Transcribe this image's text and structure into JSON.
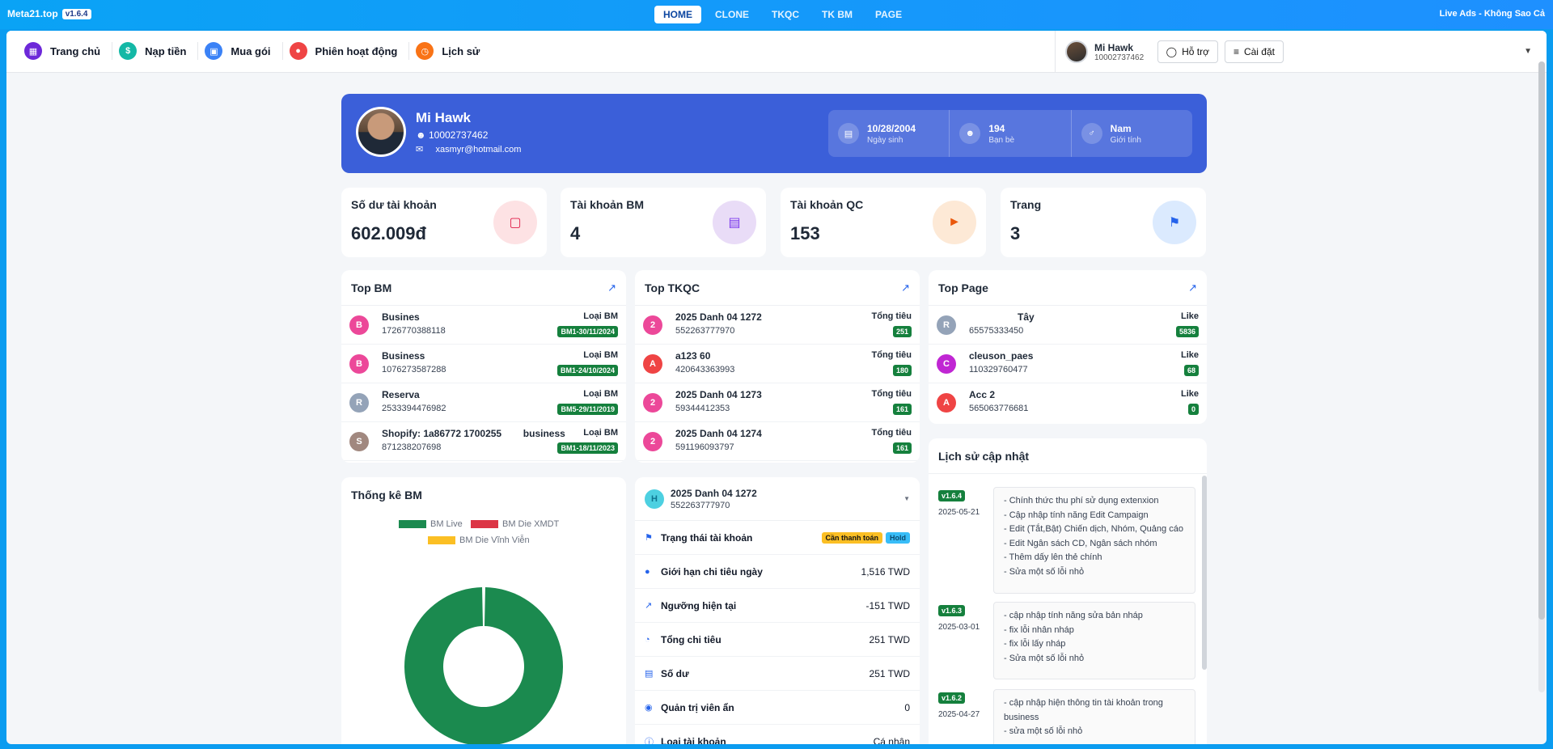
{
  "topbar": {
    "brand": "Meta21.top",
    "version": "v1.6.4",
    "tabs": [
      "HOME",
      "CLONE",
      "TKQC",
      "TK BM",
      "PAGE"
    ],
    "right_text": "Live Ads - Không Sao Cả"
  },
  "menu": {
    "items": [
      {
        "label": "Trang chủ",
        "color": "#6d28d9"
      },
      {
        "label": "Nạp tiền",
        "color": "#14b8a6"
      },
      {
        "label": "Mua gói",
        "color": "#3b82f6"
      },
      {
        "label": "Phiên hoạt động",
        "color": "#ef4444"
      },
      {
        "label": "Lịch sử",
        "color": "#f97316"
      }
    ],
    "support": "Hỗ trợ",
    "settings": "Cài đặt",
    "user_name": "Mi Hawk",
    "user_id": "10002737462"
  },
  "profile": {
    "name": "Mi Hawk",
    "id": "10002737462",
    "email": "xasmyr@hotmail.com",
    "stats": [
      {
        "value": "10/28/2004",
        "label": "Ngày sinh"
      },
      {
        "value": "194",
        "label": "Bạn bè"
      },
      {
        "value": "Nam",
        "label": "Giới tính"
      }
    ]
  },
  "stats": [
    {
      "title": "Số dư tài khoản",
      "value": "602.009đ",
      "bg": "#fde2e4",
      "fg": "#e11d48"
    },
    {
      "title": "Tài khoản BM",
      "value": "4",
      "bg": "#e9dcf7",
      "fg": "#7c3aed"
    },
    {
      "title": "Tài khoản QC",
      "value": "153",
      "bg": "#fde9d6",
      "fg": "#ea580c"
    },
    {
      "title": "Trang",
      "value": "3",
      "bg": "#dbeafe",
      "fg": "#2563eb"
    }
  ],
  "top_bm": {
    "title": "Top BM",
    "rows": [
      {
        "letter": "B",
        "color": "#ec4899",
        "name": "Busines",
        "id": "1726770388118",
        "type": "Loại BM",
        "badge": "BM1-30/11/2024"
      },
      {
        "letter": "B",
        "color": "#ec4899",
        "name": "Business",
        "id": "1076273587288",
        "type": "Loại BM",
        "badge": "BM1-24/10/2024"
      },
      {
        "letter": "R",
        "color": "#94a3b8",
        "name": "Reserva",
        "id": "2533394476982",
        "type": "Loại BM",
        "badge": "BM5-29/11/2019"
      },
      {
        "letter": "S",
        "color": "#a1887f",
        "name": "Shopify: 1a86772 1700255",
        "name2": "business",
        "id": "871238207698",
        "type": "Loại BM",
        "badge": "BM1-18/11/2023"
      }
    ]
  },
  "top_tkqc": {
    "title": "Top TKQC",
    "rows": [
      {
        "letter": "2",
        "color": "#ec4899",
        "name": "2025 Danh 04 1272",
        "id": "552263777970",
        "type": "Tổng tiêu",
        "badge": "251"
      },
      {
        "letter": "A",
        "color": "#ef4444",
        "name": "a123 60",
        "id": "420643363993",
        "type": "Tổng tiêu",
        "badge": "180"
      },
      {
        "letter": "2",
        "color": "#ec4899",
        "name": "2025 Danh 04 1273",
        "id": "59344412353",
        "type": "Tổng tiêu",
        "badge": "161"
      },
      {
        "letter": "2",
        "color": "#ec4899",
        "name": "2025 Danh 04 1274",
        "id": "591196093797",
        "type": "Tổng tiêu",
        "badge": "161"
      }
    ]
  },
  "top_page": {
    "title": "Top Page",
    "rows": [
      {
        "letter": "R",
        "color": "#94a3b8",
        "name": "Tây",
        "id": "65575333450",
        "type": "Like",
        "badge": "5836"
      },
      {
        "letter": "C",
        "color": "#c026d3",
        "name": "cleuson_paes",
        "id": "110329760477",
        "type": "Like",
        "badge": "68"
      },
      {
        "letter": "A",
        "color": "#ef4444",
        "name": "Acc 2",
        "id": "565063776681",
        "type": "Like",
        "badge": "0"
      }
    ]
  },
  "bm_stats": {
    "title": "Thống kê BM",
    "chart_data": {
      "type": "pie",
      "categories": [
        "BM Live",
        "BM Die XMDT",
        "BM Die Vĩnh Viễn"
      ],
      "values": [
        4,
        0,
        0
      ],
      "colors": [
        "#1b8a4f",
        "#dc3545",
        "#fbbf24"
      ],
      "legend": "top"
    }
  },
  "account": {
    "name": "2025 Danh 04 1272",
    "id": "552263777970",
    "letter": "H",
    "rows": [
      {
        "label": "Trạng thái tài khoản",
        "value": "",
        "tags": [
          "Cần thanh toán",
          "Hold"
        ]
      },
      {
        "label": "Giới hạn chi tiêu ngày",
        "value": "1,516 TWD"
      },
      {
        "label": "Ngưỡng hiện tại",
        "value": "-151 TWD"
      },
      {
        "label": "Tổng chi tiêu",
        "value": "251 TWD"
      },
      {
        "label": "Số dư",
        "value": "251 TWD"
      },
      {
        "label": "Quản trị viên ẩn",
        "value": "0"
      },
      {
        "label": "Loại tài khoản",
        "value": "Cá nhân"
      }
    ]
  },
  "history": {
    "title": "Lịch sử cập nhật",
    "entries": [
      {
        "version": "v1.6.4",
        "date": "2025-05-21",
        "items": [
          "- Chính thức thu phí sử dụng extenxion",
          "- Cập nhập tính năng Edit Campaign",
          "- Edit (Tắt,Bật) Chiến dịch, Nhóm, Quảng cáo",
          "- Edit Ngân sách CD, Ngân sách nhóm",
          "- Thêm dấy lên thẻ chính",
          "- Sửa một số lỗi nhỏ"
        ]
      },
      {
        "version": "v1.6.3",
        "date": "2025-03-01",
        "items": [
          "- cập nhập tính năng sửa bản nháp",
          "- fix lỗi nhân nháp",
          "- fix lỗi lấy nháp",
          "- Sửa một số lỗi nhỏ"
        ]
      },
      {
        "version": "v1.6.2",
        "date": "2025-04-27",
        "items": [
          "- cập nhập hiện thông tin tài khoản trong business",
          "- sửa một số lỗi nhỏ"
        ]
      }
    ]
  }
}
